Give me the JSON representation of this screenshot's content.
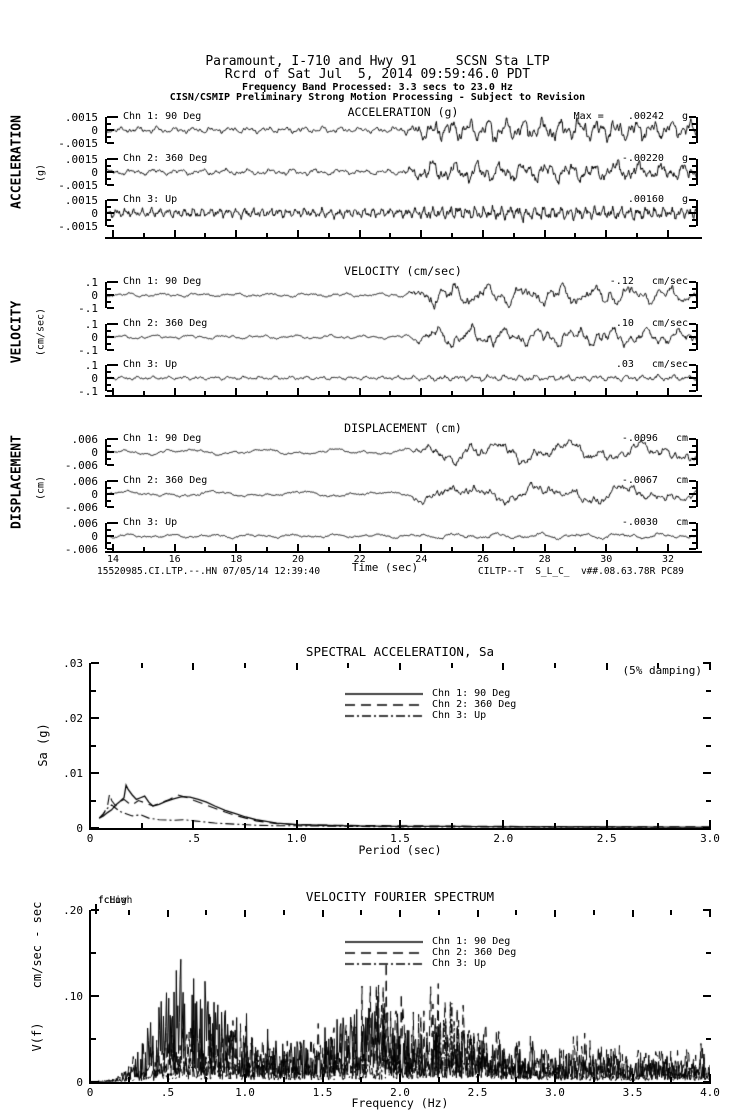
{
  "header": {
    "line1": "Paramount, I-710 and Hwy 91     SCSN Sta LTP",
    "line2": "Rcrd of Sat Jul  5, 2014 09:59:46.0 PDT",
    "line3": "Frequency Band Processed: 3.3 secs to 23.0 Hz",
    "line4": "CISN/CSMIP Preliminary Strong Motion Processing - Subject to Revision"
  },
  "footer": {
    "left": "15520985.CI.LTP.--.HN 07/05/14 12:39:40",
    "right": "CILTP--T  S_L_C_  v##.08.63.78R PC89"
  },
  "colors": {
    "ink": "#000000",
    "paper": "#ffffff"
  },
  "chart_data": [
    {
      "id": "acceleration",
      "type": "line",
      "subtype": "seismogram-time-series",
      "title": "ACCELERATION (g)",
      "side_label": "ACCELERATION",
      "side_unit": "(g)",
      "scale": {
        "top": ".0015",
        "zero": "0",
        "bottom": "-.0015",
        "full_scale": 0.0015
      },
      "xlabel": "Time (sec)",
      "xlim": [
        13.7,
        33.1
      ],
      "xticks": [
        14,
        16,
        18,
        20,
        22,
        24,
        26,
        28,
        30,
        32
      ],
      "series": [
        {
          "name": "Chn 1: 90 Deg",
          "peak_label": "Max =    .00242",
          "peak_value": 0.00242,
          "units": "g",
          "wave": {
            "seed": 11,
            "cycles": 64,
            "base": 0.3,
            "peak": 1.05,
            "onset": 23.3
          }
        },
        {
          "name": "Chn 2: 360 Deg",
          "peak_label": "-.00220",
          "peak_value": -0.0022,
          "units": "g",
          "wave": {
            "seed": 29,
            "cycles": 60,
            "base": 0.3,
            "peak": 1.0,
            "onset": 23.3
          }
        },
        {
          "name": "Chn 3: Up",
          "peak_label": ".00160",
          "peak_value": 0.0016,
          "units": "g",
          "wave": {
            "seed": 47,
            "cycles": 130,
            "base": 0.45,
            "peak": 0.65,
            "onset": 23.2
          }
        }
      ]
    },
    {
      "id": "velocity",
      "type": "line",
      "subtype": "seismogram-time-series",
      "title": "VELOCITY (cm/sec)",
      "side_label": "VELOCITY",
      "side_unit": "(cm/sec)",
      "scale": {
        "top": ".1",
        "zero": "0",
        "bottom": "-.1",
        "full_scale": 0.1
      },
      "xlabel": "Time (sec)",
      "xlim": [
        13.7,
        33.1
      ],
      "xticks": [
        14,
        16,
        18,
        20,
        22,
        24,
        26,
        28,
        30,
        32
      ],
      "series": [
        {
          "name": "Chn 1: 90 Deg",
          "peak_label": "-.12",
          "peak_value": -0.12,
          "units": "cm/sec",
          "wave": {
            "seed": 61,
            "cycles": 32,
            "base": 0.2,
            "peak": 1.05,
            "onset": 23.4
          }
        },
        {
          "name": "Chn 2: 360 Deg",
          "peak_label": ".10",
          "peak_value": 0.1,
          "units": "cm/sec",
          "wave": {
            "seed": 73,
            "cycles": 30,
            "base": 0.2,
            "peak": 0.95,
            "onset": 23.4
          }
        },
        {
          "name": "Chn 3: Up",
          "peak_label": ".03",
          "peak_value": 0.03,
          "units": "cm/sec",
          "wave": {
            "seed": 83,
            "cycles": 70,
            "base": 0.18,
            "peak": 0.3,
            "onset": 23.3
          }
        }
      ]
    },
    {
      "id": "displacement",
      "type": "line",
      "subtype": "seismogram-time-series",
      "title": "DISPLACEMENT (cm)",
      "side_label": "DISPLACEMENT",
      "side_unit": "(cm)",
      "scale": {
        "top": ".006",
        "zero": "0",
        "bottom": "-.006",
        "full_scale": 0.006
      },
      "xlabel": "Time (sec)",
      "xlim": [
        13.7,
        33.1
      ],
      "xticks": [
        14,
        16,
        18,
        20,
        22,
        24,
        26,
        28,
        30,
        32
      ],
      "series": [
        {
          "name": "Chn 1: 90 Deg",
          "peak_label": "-.0096",
          "peak_value": -0.0096,
          "units": "cm",
          "wave": {
            "seed": 97,
            "cycles": 15,
            "base": 0.3,
            "peak": 1.15,
            "onset": 23.4
          }
        },
        {
          "name": "Chn 2: 360 Deg",
          "peak_label": "-.0067",
          "peak_value": -0.0067,
          "units": "cm",
          "wave": {
            "seed": 103,
            "cycles": 16,
            "base": 0.3,
            "peak": 1.0,
            "onset": 23.4
          }
        },
        {
          "name": "Chn 3: Up",
          "peak_label": "-.0030",
          "peak_value": -0.003,
          "units": "cm",
          "wave": {
            "seed": 113,
            "cycles": 26,
            "base": 0.2,
            "peak": 0.3,
            "onset": 23.3
          }
        }
      ]
    },
    {
      "id": "spectral_acceleration",
      "type": "line",
      "title": "SPECTRAL ACCELERATION, Sa",
      "annotation": "(5% damping)",
      "xlabel": "Period (sec)",
      "ylabel": "Sa (g)",
      "xlim": [
        0,
        3.0
      ],
      "ylim": [
        0,
        0.03
      ],
      "legend_position": "top-center",
      "xticks": [
        {
          "v": 0,
          "label": "0"
        },
        {
          "v": 0.5,
          "label": ".5"
        },
        {
          "v": 1.0,
          "label": "1.0"
        },
        {
          "v": 1.5,
          "label": "1.5"
        },
        {
          "v": 2.0,
          "label": "2.0"
        },
        {
          "v": 2.5,
          "label": "2.5"
        },
        {
          "v": 3.0,
          "label": "3.0"
        }
      ],
      "yticks": [
        {
          "v": 0,
          "label": "0"
        },
        {
          "v": 0.01,
          "label": ".01"
        },
        {
          "v": 0.02,
          "label": ".02"
        },
        {
          "v": 0.03,
          "label": ".03"
        }
      ],
      "series": [
        {
          "name": "Chn 1: 90 Deg",
          "style": "solid",
          "points": [
            [
              0.04,
              0.0018
            ],
            [
              0.06,
              0.0022
            ],
            [
              0.08,
              0.0028
            ],
            [
              0.1,
              0.0033
            ],
            [
              0.12,
              0.0042
            ],
            [
              0.14,
              0.0048
            ],
            [
              0.16,
              0.0055
            ],
            [
              0.17,
              0.0078
            ],
            [
              0.18,
              0.007
            ],
            [
              0.2,
              0.006
            ],
            [
              0.22,
              0.0052
            ],
            [
              0.24,
              0.0055
            ],
            [
              0.26,
              0.0058
            ],
            [
              0.28,
              0.0047
            ],
            [
              0.3,
              0.004
            ],
            [
              0.33,
              0.0043
            ],
            [
              0.36,
              0.0048
            ],
            [
              0.4,
              0.0053
            ],
            [
              0.44,
              0.0057
            ],
            [
              0.48,
              0.0056
            ],
            [
              0.52,
              0.0052
            ],
            [
              0.56,
              0.0047
            ],
            [
              0.6,
              0.004
            ],
            [
              0.65,
              0.0032
            ],
            [
              0.7,
              0.0026
            ],
            [
              0.75,
              0.002
            ],
            [
              0.8,
              0.0015
            ],
            [
              0.85,
              0.0012
            ],
            [
              0.9,
              0.0009
            ],
            [
              1.0,
              0.0006
            ],
            [
              1.1,
              0.0005
            ],
            [
              1.25,
              0.0004
            ],
            [
              1.5,
              0.0003
            ],
            [
              1.75,
              0.0003
            ],
            [
              2.0,
              0.0002
            ],
            [
              2.5,
              0.0002
            ],
            [
              3.0,
              0.0001
            ]
          ]
        },
        {
          "name": "Chn 2: 360 Deg",
          "style": "dash",
          "points": [
            [
              0.04,
              0.0018
            ],
            [
              0.06,
              0.0025
            ],
            [
              0.08,
              0.004
            ],
            [
              0.09,
              0.0062
            ],
            [
              0.1,
              0.005
            ],
            [
              0.12,
              0.004
            ],
            [
              0.14,
              0.0048
            ],
            [
              0.16,
              0.0052
            ],
            [
              0.18,
              0.0046
            ],
            [
              0.2,
              0.0042
            ],
            [
              0.23,
              0.005
            ],
            [
              0.26,
              0.0046
            ],
            [
              0.3,
              0.004
            ],
            [
              0.34,
              0.0046
            ],
            [
              0.38,
              0.0052
            ],
            [
              0.42,
              0.006
            ],
            [
              0.46,
              0.0056
            ],
            [
              0.5,
              0.005
            ],
            [
              0.55,
              0.0043
            ],
            [
              0.6,
              0.0036
            ],
            [
              0.65,
              0.0029
            ],
            [
              0.7,
              0.0023
            ],
            [
              0.75,
              0.0018
            ],
            [
              0.8,
              0.0013
            ],
            [
              0.9,
              0.0008
            ],
            [
              1.0,
              0.0006
            ],
            [
              1.2,
              0.0005
            ],
            [
              1.5,
              0.0004
            ],
            [
              2.0,
              0.0003
            ],
            [
              2.5,
              0.0002
            ],
            [
              3.0,
              0.0002
            ]
          ]
        },
        {
          "name": "Chn 3: Up",
          "style": "dashdot",
          "points": [
            [
              0.04,
              0.0018
            ],
            [
              0.06,
              0.0026
            ],
            [
              0.08,
              0.0036
            ],
            [
              0.1,
              0.0042
            ],
            [
              0.12,
              0.0036
            ],
            [
              0.14,
              0.003
            ],
            [
              0.17,
              0.0026
            ],
            [
              0.2,
              0.0022
            ],
            [
              0.24,
              0.0024
            ],
            [
              0.28,
              0.0018
            ],
            [
              0.33,
              0.0015
            ],
            [
              0.4,
              0.0014
            ],
            [
              0.45,
              0.0015
            ],
            [
              0.5,
              0.0013
            ],
            [
              0.6,
              0.0009
            ],
            [
              0.7,
              0.0007
            ],
            [
              0.8,
              0.0005
            ],
            [
              0.9,
              0.0004
            ],
            [
              1.0,
              0.0004
            ],
            [
              1.25,
              0.0003
            ],
            [
              1.5,
              0.0002
            ],
            [
              2.0,
              0.0002
            ],
            [
              2.5,
              0.0001
            ],
            [
              3.0,
              0.0001
            ]
          ]
        }
      ]
    },
    {
      "id": "velocity_fourier_spectrum",
      "type": "line",
      "title": "VELOCITY FOURIER SPECTRUM",
      "xlabel": "Frequency (Hz)",
      "ylabel": "V(f)",
      "ylabel_units": "cm/sec - sec",
      "fc_low": "fcLow",
      "fc_high": "fcHigh",
      "xlim": [
        0,
        4.0
      ],
      "ylim": [
        0,
        0.2
      ],
      "legend_position": "top-center",
      "xticks": [
        {
          "v": 0,
          "label": "0"
        },
        {
          "v": 0.5,
          "label": ".5"
        },
        {
          "v": 1.0,
          "label": "1.0"
        },
        {
          "v": 1.5,
          "label": "1.5"
        },
        {
          "v": 2.0,
          "label": "2.0"
        },
        {
          "v": 2.5,
          "label": "2.5"
        },
        {
          "v": 3.0,
          "label": "3.0"
        },
        {
          "v": 3.5,
          "label": "3.5"
        },
        {
          "v": 4.0,
          "label": "4.0"
        }
      ],
      "yticks": [
        {
          "v": 0,
          "label": "0"
        },
        {
          "v": 0.1,
          "label": ".10"
        },
        {
          "v": 0.2,
          "label": ".20"
        }
      ],
      "series": [
        {
          "name": "Chn 1: 90 Deg",
          "style": "solid",
          "seed": 201,
          "envelope": [
            [
              0,
              0
            ],
            [
              0.12,
              0.002
            ],
            [
              0.2,
              0.008
            ],
            [
              0.28,
              0.035
            ],
            [
              0.35,
              0.06
            ],
            [
              0.45,
              0.1
            ],
            [
              0.55,
              0.135
            ],
            [
              0.62,
              0.11
            ],
            [
              0.7,
              0.1
            ],
            [
              0.8,
              0.105
            ],
            [
              0.9,
              0.09
            ],
            [
              1.0,
              0.07
            ],
            [
              1.1,
              0.055
            ],
            [
              1.25,
              0.05
            ],
            [
              1.4,
              0.055
            ],
            [
              1.55,
              0.075
            ],
            [
              1.7,
              0.09
            ],
            [
              1.85,
              0.105
            ],
            [
              2.0,
              0.08
            ],
            [
              2.15,
              0.065
            ],
            [
              2.3,
              0.055
            ],
            [
              2.5,
              0.05
            ],
            [
              2.7,
              0.045
            ],
            [
              2.9,
              0.04
            ],
            [
              3.1,
              0.035
            ],
            [
              3.4,
              0.03
            ],
            [
              3.7,
              0.03
            ],
            [
              4.0,
              0.028
            ]
          ]
        },
        {
          "name": "Chn 2: 360 Deg",
          "style": "dash",
          "seed": 307,
          "envelope": [
            [
              0,
              0
            ],
            [
              0.15,
              0.003
            ],
            [
              0.25,
              0.02
            ],
            [
              0.35,
              0.045
            ],
            [
              0.5,
              0.065
            ],
            [
              0.65,
              0.075
            ],
            [
              0.8,
              0.07
            ],
            [
              0.95,
              0.06
            ],
            [
              1.1,
              0.05
            ],
            [
              1.3,
              0.055
            ],
            [
              1.5,
              0.06
            ],
            [
              1.7,
              0.08
            ],
            [
              1.85,
              0.13
            ],
            [
              1.95,
              0.115
            ],
            [
              2.1,
              0.09
            ],
            [
              2.25,
              0.1
            ],
            [
              2.4,
              0.095
            ],
            [
              2.55,
              0.07
            ],
            [
              2.75,
              0.05
            ],
            [
              3.0,
              0.04
            ],
            [
              3.2,
              0.05
            ],
            [
              3.45,
              0.045
            ],
            [
              3.7,
              0.04
            ],
            [
              4.0,
              0.05
            ]
          ]
        },
        {
          "name": "Chn 3: Up",
          "style": "dashdot",
          "seed": 409,
          "envelope": [
            [
              0,
              0
            ],
            [
              0.2,
              0.005
            ],
            [
              0.35,
              0.015
            ],
            [
              0.55,
              0.03
            ],
            [
              0.75,
              0.04
            ],
            [
              0.95,
              0.035
            ],
            [
              1.2,
              0.03
            ],
            [
              1.5,
              0.03
            ],
            [
              1.8,
              0.035
            ],
            [
              2.1,
              0.045
            ],
            [
              2.3,
              0.085
            ],
            [
              2.45,
              0.06
            ],
            [
              2.6,
              0.04
            ],
            [
              2.9,
              0.025
            ],
            [
              3.2,
              0.02
            ],
            [
              3.6,
              0.02
            ],
            [
              4.0,
              0.018
            ]
          ]
        }
      ]
    }
  ]
}
